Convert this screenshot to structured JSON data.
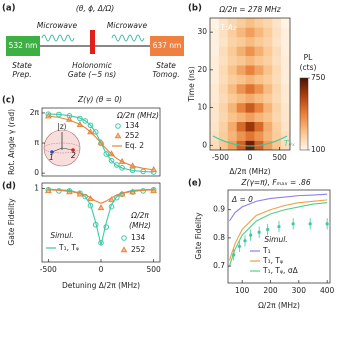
{
  "panel_labels": [
    "(a)",
    "(b)",
    "(c)",
    "(d)",
    "(e)"
  ],
  "diagram": {
    "parameters": "(θ, ϕ, Δ/Ω)",
    "microwave_left": "Microwave",
    "microwave_right": "Microwave",
    "laser_left": "532 nm",
    "laser_right": "637 nm",
    "steps": [
      [
        "State",
        "Prep."
      ],
      [
        "Holonomic",
        "Gate (~5 ns)"
      ],
      [
        "State",
        "Tomog."
      ]
    ]
  },
  "chart_data": [
    {
      "type": "heatmap",
      "title": "Ω/2π = 278 MHz",
      "annotations": [
        "+1:A₂",
        "T₀ₓ"
      ],
      "xlabel": "Δ/2π (MHz)",
      "ylabel": "Time (ns)",
      "x": [
        -600,
        -450,
        -300,
        -150,
        0,
        150,
        300,
        450,
        600
      ],
      "y": [
        0,
        2.5,
        5,
        7.5,
        10,
        12.5,
        15,
        17.5,
        20,
        22.5,
        25,
        27.5,
        30,
        32.5
      ],
      "z": [
        [
          180,
          250,
          350,
          500,
          700,
          500,
          350,
          250,
          180
        ],
        [
          170,
          230,
          300,
          380,
          450,
          380,
          300,
          230,
          170
        ],
        [
          160,
          220,
          320,
          480,
          620,
          480,
          320,
          220,
          160
        ],
        [
          150,
          200,
          260,
          300,
          350,
          300,
          260,
          200,
          150
        ],
        [
          150,
          210,
          300,
          420,
          520,
          420,
          300,
          210,
          150
        ],
        [
          140,
          190,
          240,
          280,
          320,
          280,
          240,
          190,
          140
        ],
        [
          140,
          200,
          280,
          380,
          460,
          380,
          280,
          200,
          140
        ],
        [
          130,
          180,
          230,
          260,
          300,
          260,
          230,
          180,
          130
        ],
        [
          130,
          190,
          260,
          340,
          420,
          340,
          260,
          190,
          130
        ],
        [
          130,
          170,
          220,
          250,
          290,
          250,
          220,
          170,
          130
        ],
        [
          120,
          180,
          240,
          310,
          380,
          310,
          240,
          180,
          120
        ],
        [
          120,
          160,
          210,
          240,
          280,
          240,
          210,
          160,
          120
        ],
        [
          120,
          170,
          230,
          290,
          350,
          290,
          230,
          170,
          120
        ],
        [
          110,
          160,
          200,
          230,
          270,
          230,
          200,
          160,
          110
        ]
      ],
      "xlim": [
        -675,
        675
      ],
      "ylim": [
        -1.25,
        33.75
      ],
      "xticks": [
        -500,
        0,
        500
      ],
      "yticks": [
        0,
        10,
        20,
        30
      ],
      "colorbar": {
        "label": "PL",
        "unit": "(cts)",
        "lim": [
          100,
          750
        ],
        "ticks": [
          100,
          750
        ],
        "colors": [
          "#fff6ea",
          "#f9c38a",
          "#e9803a",
          "#b0400e",
          "#4a1200"
        ]
      }
    },
    {
      "type": "scatter_line",
      "title": "Z(γ) (θ = 0)",
      "ylabel": "Rot. Angle γ (rad)",
      "xlim": [
        -560,
        560
      ],
      "ylim": [
        -0.3,
        6.8
      ],
      "yticks": [
        0,
        {
          "value": 3.1416,
          "label": "π"
        },
        {
          "value": 6.2832,
          "label": "2π"
        }
      ],
      "legend_title": "Ω/2π (MHz)",
      "inset_labels": [
        "|z⟩",
        "1",
        "2"
      ],
      "series": [
        {
          "name": "134",
          "color": "#3cc9a8",
          "marker": "circle",
          "x": [
            -500,
            -400,
            -300,
            -200,
            -150,
            -100,
            -50,
            0,
            50,
            100,
            150,
            200,
            300,
            400,
            500
          ],
          "values": [
            6.15,
            6.12,
            5.98,
            5.7,
            5.45,
            5.0,
            4.3,
            3.1,
            2.0,
            1.3,
            0.85,
            0.55,
            0.3,
            0.18,
            0.12
          ]
        },
        {
          "name": "252",
          "color": "#e8833a",
          "marker": "triangle",
          "x": [
            -500,
            -300,
            -200,
            -100,
            0,
            100,
            200,
            300,
            500
          ],
          "values": [
            5.95,
            5.6,
            5.05,
            4.3,
            3.2,
            2.0,
            1.2,
            0.75,
            0.35
          ]
        },
        {
          "name": "Eq. 2",
          "color": "#e8833a",
          "marker": "line",
          "x": [
            -500,
            -400,
            -300,
            -200,
            -150,
            -100,
            -50,
            0,
            50,
            100,
            150,
            200,
            300,
            400,
            500
          ],
          "values": [
            5.95,
            5.82,
            5.55,
            5.09,
            4.76,
            4.3,
            3.76,
            3.14,
            2.53,
            1.98,
            1.52,
            1.19,
            0.74,
            0.5,
            0.34
          ]
        },
        {
          "color": "#3cc9a8",
          "marker": "line",
          "x": [
            -500,
            -400,
            -300,
            -200,
            -150,
            -100,
            -50,
            0,
            50,
            100,
            150,
            200,
            300,
            400,
            500
          ],
          "values": [
            6.18,
            6.13,
            6.01,
            5.75,
            5.47,
            5.02,
            4.24,
            3.14,
            2.04,
            1.26,
            0.81,
            0.53,
            0.27,
            0.17,
            0.11
          ]
        }
      ]
    },
    {
      "type": "scatter_line",
      "xlabel": "Detuning Δ/2π (MHz)",
      "ylabel": "Gate Fidelity",
      "xlim": [
        -560,
        560
      ],
      "ylim": [
        0.35,
        1.05
      ],
      "xticks": [
        -500,
        0,
        500
      ],
      "yticks": [
        1
      ],
      "legend_title": [
        "Ω/2π",
        "(MHz)"
      ],
      "legend2_title": "Simul.",
      "series": [
        {
          "name": "134",
          "color": "#3cc9a8",
          "marker": "circle",
          "x": [
            -500,
            -400,
            -300,
            -200,
            -150,
            -100,
            -50,
            0,
            50,
            100,
            150,
            200,
            300,
            400,
            500
          ],
          "values": [
            0.99,
            0.98,
            0.98,
            0.96,
            0.93,
            0.85,
            0.68,
            0.52,
            0.66,
            0.84,
            0.92,
            0.95,
            0.97,
            0.98,
            0.99
          ]
        },
        {
          "name": "252",
          "color": "#e8833a",
          "marker": "triangle",
          "x": [
            -500,
            -300,
            -200,
            -100,
            0,
            100,
            200,
            300,
            500
          ],
          "values": [
            0.98,
            0.97,
            0.95,
            0.91,
            0.83,
            0.9,
            0.95,
            0.97,
            0.98
          ]
        },
        {
          "name": "T₁, Tᵩ",
          "color": "#3cc9a8",
          "marker": "line",
          "x": [
            -500,
            -400,
            -300,
            -200,
            -150,
            -100,
            -50,
            0,
            50,
            100,
            150,
            200,
            300,
            400,
            500
          ],
          "values": [
            0.995,
            0.99,
            0.985,
            0.96,
            0.93,
            0.86,
            0.7,
            0.5,
            0.7,
            0.86,
            0.93,
            0.96,
            0.985,
            0.99,
            0.995
          ]
        },
        {
          "color": "#e8833a",
          "marker": "line",
          "x": [
            -500,
            -400,
            -300,
            -200,
            -150,
            -100,
            -50,
            0,
            50,
            100,
            150,
            200,
            300,
            400,
            500
          ],
          "values": [
            0.99,
            0.985,
            0.975,
            0.96,
            0.945,
            0.92,
            0.89,
            0.87,
            0.89,
            0.92,
            0.945,
            0.96,
            0.975,
            0.985,
            0.99
          ]
        }
      ]
    },
    {
      "type": "scatter_line",
      "title": "Z(γ=π), Fₘₐₓ = .86",
      "annotations": [
        "Δ = 0"
      ],
      "xlabel": "Ω/2π (MHz)",
      "ylabel": "Gate Fidelity",
      "xlim": [
        50,
        410
      ],
      "ylim": [
        0.64,
        0.97
      ],
      "xticks": [
        100,
        200,
        300,
        400
      ],
      "yticks": [
        0.7,
        0.8,
        0.9
      ],
      "legend_title": "Simul.",
      "series": [
        {
          "name": "T₁",
          "color": "#8f7fe8",
          "marker": "line",
          "x": [
            55,
            75,
            100,
            150,
            200,
            250,
            300,
            350,
            400
          ],
          "values": [
            0.86,
            0.89,
            0.91,
            0.93,
            0.94,
            0.945,
            0.95,
            0.952,
            0.955
          ]
        },
        {
          "name": "T₁, Tᵩ",
          "color": "#f0a040",
          "marker": "line",
          "x": [
            55,
            75,
            100,
            150,
            200,
            250,
            300,
            350,
            400
          ],
          "values": [
            0.72,
            0.78,
            0.83,
            0.88,
            0.9,
            0.915,
            0.925,
            0.93,
            0.935
          ]
        },
        {
          "name": "T₁, Tᵩ, σΔ",
          "color": "#4fd08a",
          "marker": "line",
          "x": [
            55,
            75,
            100,
            150,
            200,
            250,
            300,
            350,
            400
          ],
          "values": [
            0.7,
            0.76,
            0.81,
            0.86,
            0.885,
            0.9,
            0.91,
            0.92,
            0.925
          ]
        },
        {
          "color": "#3cc9a8",
          "marker": "dot",
          "x": [
            70,
            90,
            110,
            130,
            160,
            190,
            230,
            280,
            340,
            400
          ],
          "values": [
            0.74,
            0.77,
            0.79,
            0.81,
            0.82,
            0.83,
            0.84,
            0.85,
            0.85,
            0.85
          ],
          "errors": [
            0.02,
            0.02,
            0.02,
            0.02,
            0.02,
            0.02,
            0.02,
            0.02,
            0.02,
            0.02
          ]
        }
      ]
    }
  ]
}
